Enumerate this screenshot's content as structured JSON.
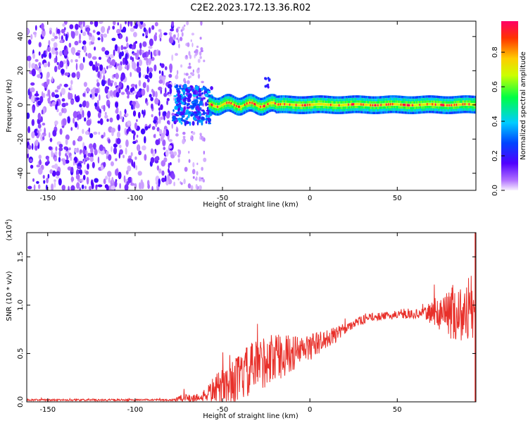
{
  "title": "C2E2.2023.172.13.36.R02",
  "chart_data": [
    {
      "type": "heatmap",
      "name": "spectrogram",
      "xlabel": "Height of straight line (km)",
      "ylabel": "Frequency (Hz)",
      "xlim": [
        -162,
        95
      ],
      "ylim": [
        -50,
        49
      ],
      "xticks": [
        -150,
        -100,
        -50,
        0,
        50
      ],
      "yticks": [
        -40,
        -20,
        0,
        20,
        40
      ],
      "colorbar": {
        "label": "Normalized spectral amplitude",
        "range": [
          0,
          0.98
        ],
        "ticks": [
          "0.0",
          "0.2",
          "0.4",
          "0.6",
          "0.8"
        ],
        "colormap": [
          "#f8f0ff",
          "#7a00ff",
          "#0044ff",
          "#00ccff",
          "#00ff66",
          "#ccff00",
          "#ffcc00",
          "#ff3300",
          "#ff0066"
        ]
      },
      "regions": [
        {
          "x_range": [
            -162,
            -78
          ],
          "freq_range": [
            -50,
            49
          ],
          "amplitude": [
            0.0,
            0.1
          ],
          "pattern": "broadband noise"
        },
        {
          "x_range": [
            -78,
            -58
          ],
          "freq_range": [
            -10,
            10
          ],
          "amplitude": [
            0.1,
            0.35
          ],
          "pattern": "scattered"
        },
        {
          "x_range": [
            -58,
            95
          ],
          "freq_range": [
            -3,
            3
          ],
          "amplitude": [
            0.3,
            0.98
          ],
          "pattern": "narrow carrier near 0 Hz"
        }
      ]
    },
    {
      "type": "line",
      "name": "snr",
      "xlabel": "Height of straight line (km)",
      "ylabel": "SNR (10 * v/v)",
      "yscale_label": "(x10^4)",
      "xlim": [
        -162,
        95
      ],
      "ylim": [
        0,
        1.75
      ],
      "xticks": [
        -150,
        -100,
        -50,
        0,
        50
      ],
      "yticks": [
        "0.0",
        "0.5",
        "1.0",
        "1.5"
      ],
      "color": "#e8302a",
      "envelope": {
        "x": [
          -162,
          -80,
          -72,
          -62,
          -55,
          -45,
          -35,
          -25,
          -15,
          -5,
          5,
          15,
          25,
          35,
          50,
          65,
          75,
          82,
          88,
          95
        ],
        "y": [
          0.02,
          0.02,
          0.04,
          0.05,
          0.14,
          0.22,
          0.34,
          0.46,
          0.5,
          0.54,
          0.62,
          0.7,
          0.82,
          0.88,
          0.9,
          0.92,
          0.95,
          0.96,
          0.95,
          0.93
        ],
        "noise": [
          0.01,
          0.01,
          0.05,
          0.04,
          0.14,
          0.22,
          0.28,
          0.28,
          0.22,
          0.16,
          0.12,
          0.08,
          0.05,
          0.04,
          0.04,
          0.05,
          0.2,
          0.3,
          0.3,
          0.3
        ]
      }
    }
  ]
}
